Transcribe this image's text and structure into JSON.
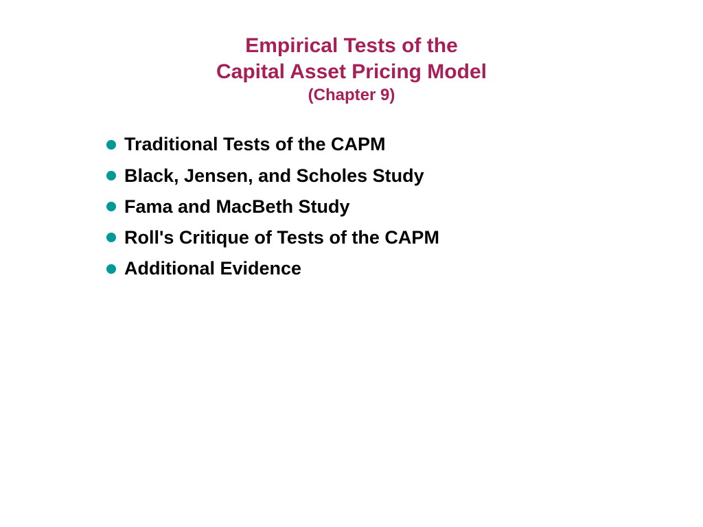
{
  "title": {
    "line1": "Empirical Tests of the",
    "line2": "Capital Asset Pricing Model",
    "subtitle": "(Chapter 9)",
    "color": "#a61f56",
    "fontsize_main": 30,
    "fontsize_sub": 24,
    "font_weight": "bold"
  },
  "bullets": {
    "items": [
      "Traditional Tests of the CAPM",
      "Black, Jensen, and Scholes Study",
      "Fama and MacBeth Study",
      "Roll's Critique of Tests of the CAPM",
      "Additional Evidence"
    ],
    "text_color": "#000000",
    "text_fontsize": 27,
    "text_font_weight": "bold",
    "dot_color": "#009999",
    "dot_size": 14
  },
  "background_color": "#ffffff"
}
